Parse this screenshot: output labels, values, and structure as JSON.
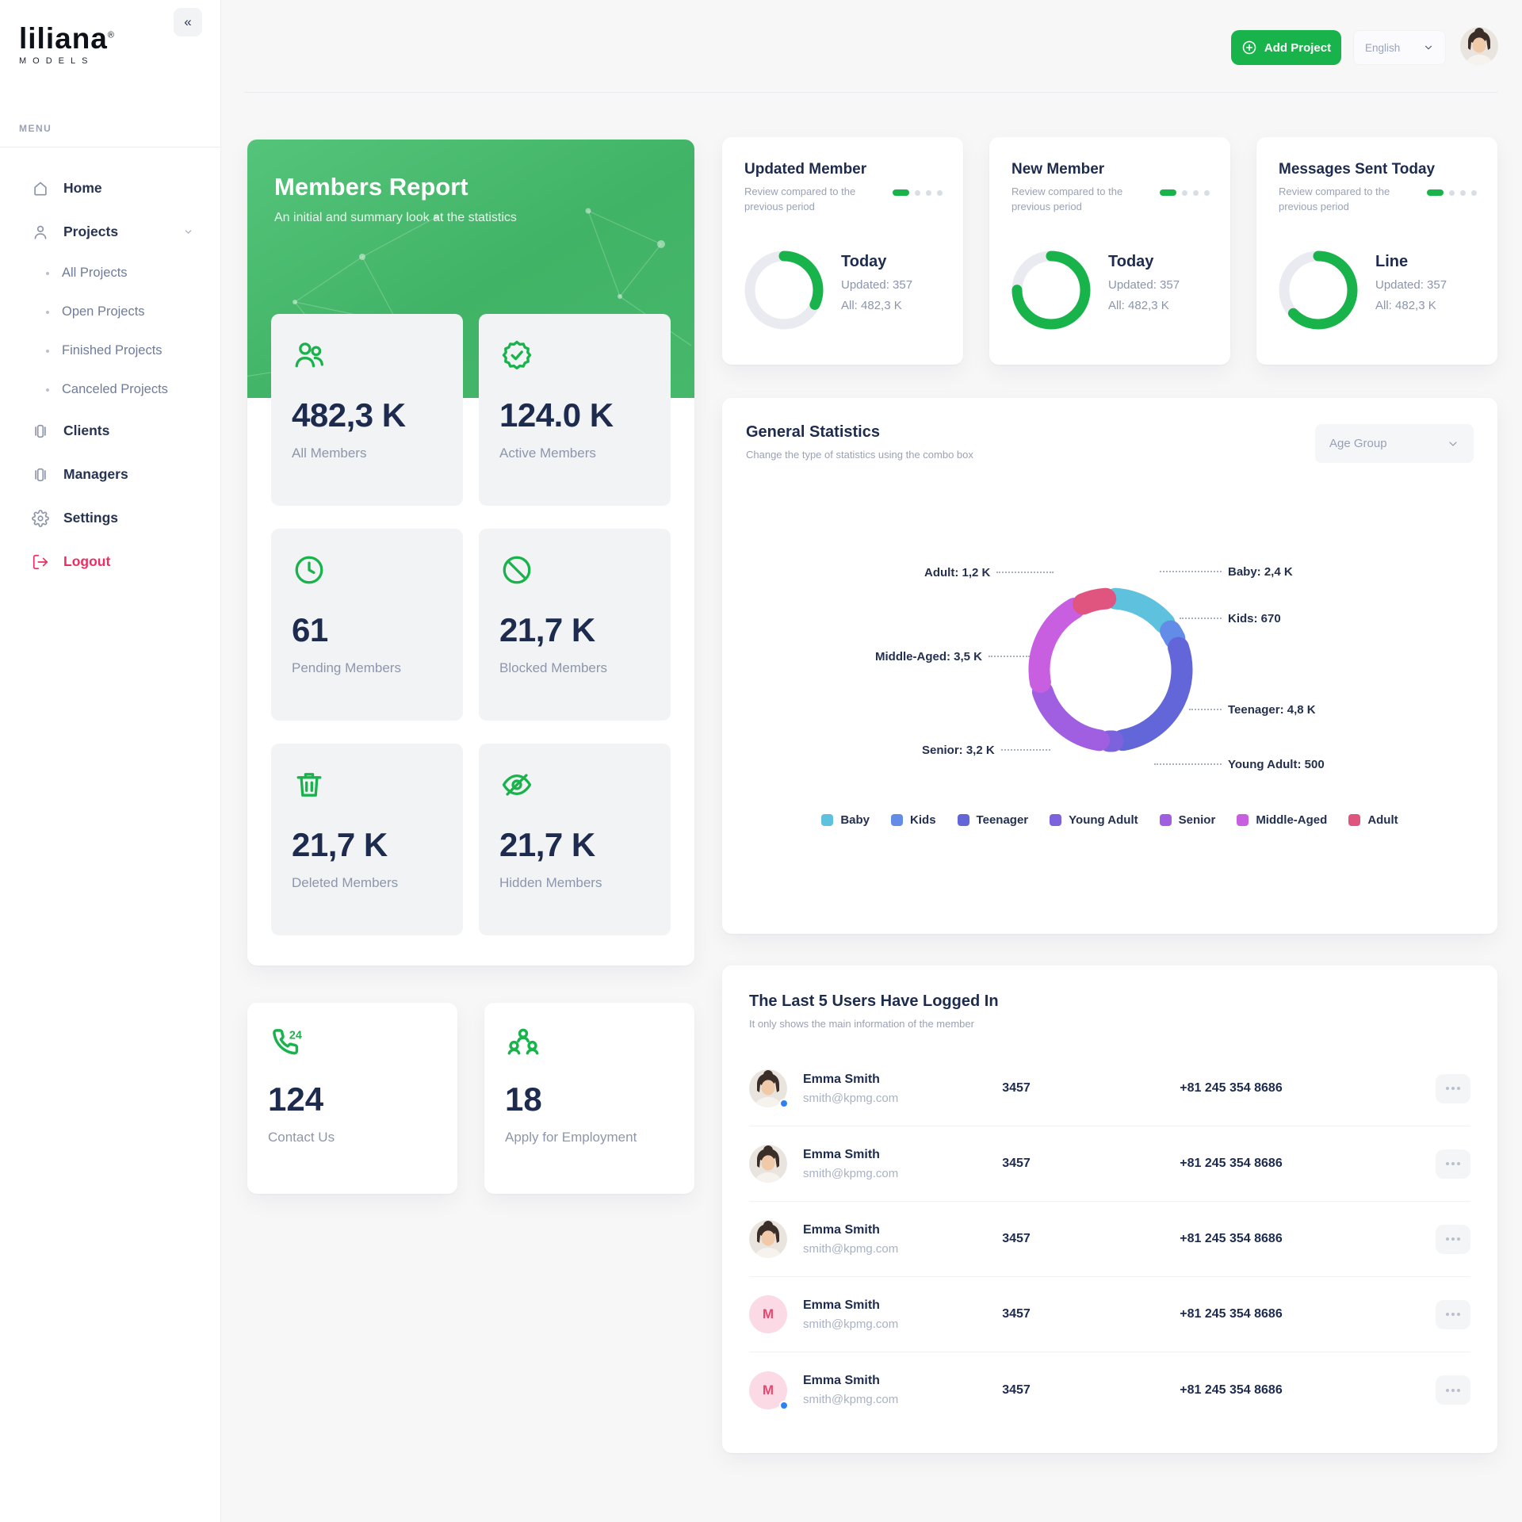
{
  "theme": {
    "accent_green": "#18b34b",
    "logout_red": "#ed2e63",
    "navy_text": "#1d2b4e",
    "members_gradient_green": "#45b768"
  },
  "brand": {
    "name": "liliana",
    "mark": "®",
    "tagline": "MODELS"
  },
  "sidebar": {
    "menu_label": "MENU",
    "items": [
      {
        "label": "Home",
        "icon": "home-icon"
      },
      {
        "label": "Projects",
        "icon": "user-icon",
        "expanded": true,
        "children": [
          "All Projects",
          "Open Projects",
          "Finished Projects",
          "Canceled Projects"
        ]
      },
      {
        "label": "Clients",
        "icon": "briefcase-icon"
      },
      {
        "label": "Managers",
        "icon": "briefcase-icon"
      },
      {
        "label": "Settings",
        "icon": "gear-icon"
      },
      {
        "label": "Logout",
        "icon": "logout-icon"
      }
    ]
  },
  "topbar": {
    "add_project_label": "Add Project",
    "language_value": "English"
  },
  "members_report": {
    "title": "Members Report",
    "subtitle": "An initial and summary look at the statistics",
    "tiles": [
      {
        "value": "482,3 K",
        "label": "All Members",
        "icon": "people-icon"
      },
      {
        "value": "124.0 K",
        "label": "Active Members",
        "icon": "badge-check-icon"
      },
      {
        "value": "61",
        "label": "Pending Members",
        "icon": "clock-icon"
      },
      {
        "value": "21,7 K",
        "label": "Blocked Members",
        "icon": "ban-icon"
      },
      {
        "value": "21,7 K",
        "label": "Deleted Members",
        "icon": "trash-icon"
      },
      {
        "value": "21,7 K",
        "label": "Hidden Members",
        "icon": "eye-off-icon"
      }
    ]
  },
  "stat_cards": [
    {
      "title": "Updated Member",
      "subtitle": "Review compared to the previous period",
      "period_label": "Today",
      "updated": "Updated: 357",
      "all": "All: 482,3 K",
      "ring_percent": 32
    },
    {
      "title": "New Member",
      "subtitle": "Review compared to the previous period",
      "period_label": "Today",
      "updated": "Updated: 357",
      "all": "All: 482,3 K",
      "ring_percent": 75
    },
    {
      "title": "Messages Sent Today",
      "subtitle": "Review compared to the previous period",
      "period_label": "Line",
      "updated": "Updated: 357",
      "all": "All: 482,3 K",
      "ring_percent": 63
    }
  ],
  "general_statistics": {
    "title": "General Statistics",
    "subtitle": "Change the type of statistics using the combo box",
    "combo_value": "Age Group"
  },
  "chart_data": {
    "type": "pie",
    "donut": true,
    "title": "General Statistics",
    "categories": [
      "Baby",
      "Kids",
      "Teenager",
      "Young Adult",
      "Senior",
      "Middle-Aged",
      "Adult"
    ],
    "values": [
      2400,
      670,
      4800,
      500,
      3200,
      3500,
      1200
    ],
    "value_labels": [
      "Baby: 2,4 K",
      "Kids: 670",
      "Teenager: 4,8 K",
      "Young Adult: 500",
      "Senior: 3,2 K",
      "Middle-Aged: 3,5 K",
      "Adult: 1,2 K"
    ],
    "colors": [
      "#5ec1dd",
      "#628ce8",
      "#6366d9",
      "#7d62dd",
      "#9f5fe0",
      "#c75fe0",
      "#e0557f"
    ],
    "legend_position": "bottom"
  },
  "quick_cards": [
    {
      "value": "124",
      "label": "Contact Us",
      "icon": "phone-24-icon"
    },
    {
      "value": "18",
      "label": "Apply for Employment",
      "icon": "people-group-icon"
    }
  ],
  "last_users": {
    "title": "The Last 5 Users Have Logged In",
    "subtitle": "It only shows the main information of the member",
    "rows": [
      {
        "name": "Emma Smith",
        "email": "smith@kpmg.com",
        "member_no": "3457",
        "phone": "+81 245 354 8686",
        "avatar": "photo",
        "avatar_letter": "",
        "online": true
      },
      {
        "name": "Emma Smith",
        "email": "smith@kpmg.com",
        "member_no": "3457",
        "phone": "+81 245 354 8686",
        "avatar": "photo",
        "avatar_letter": "",
        "online": false
      },
      {
        "name": "Emma Smith",
        "email": "smith@kpmg.com",
        "member_no": "3457",
        "phone": "+81 245 354 8686",
        "avatar": "photo",
        "avatar_letter": "",
        "online": false
      },
      {
        "name": "Emma Smith",
        "email": "smith@kpmg.com",
        "member_no": "3457",
        "phone": "+81 245 354 8686",
        "avatar": "letter",
        "avatar_letter": "M",
        "online": false
      },
      {
        "name": "Emma Smith",
        "email": "smith@kpmg.com",
        "member_no": "3457",
        "phone": "+81 245 354 8686",
        "avatar": "letter",
        "avatar_letter": "M",
        "online": true
      }
    ]
  }
}
